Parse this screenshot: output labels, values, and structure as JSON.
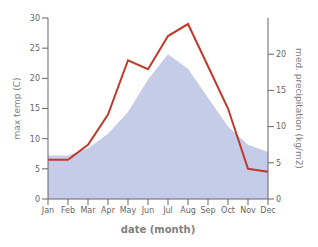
{
  "chart_data": {
    "type": "line",
    "categories": [
      "Jan",
      "Feb",
      "Mar",
      "Apr",
      "May",
      "Jun",
      "Jul",
      "Aug",
      "Sep",
      "Oct",
      "Nov",
      "Dec"
    ],
    "xlabel": "date (month)",
    "ylabel": "max temp (C)",
    "y2label": "med. precipitation (kg/m2)",
    "ylim": [
      0,
      30
    ],
    "yticks": [
      0,
      5,
      10,
      15,
      20,
      25,
      30
    ],
    "y2lim": [
      0,
      25
    ],
    "y2ticks": [
      0,
      5,
      10,
      15,
      20
    ],
    "series": [
      {
        "type": "area",
        "axis": "y2",
        "color": "#c5cce8",
        "values": [
          6.0,
          6.0,
          7.0,
          9.0,
          12.0,
          16.5,
          20.0,
          18.0,
          14.0,
          10.0,
          7.5,
          6.5
        ]
      },
      {
        "type": "line",
        "color": "#c0392b",
        "values": [
          6.5,
          6.5,
          9.0,
          14.0,
          23.0,
          21.5,
          27.0,
          29.0,
          22.0,
          15.0,
          5.0,
          4.5
        ]
      }
    ]
  }
}
